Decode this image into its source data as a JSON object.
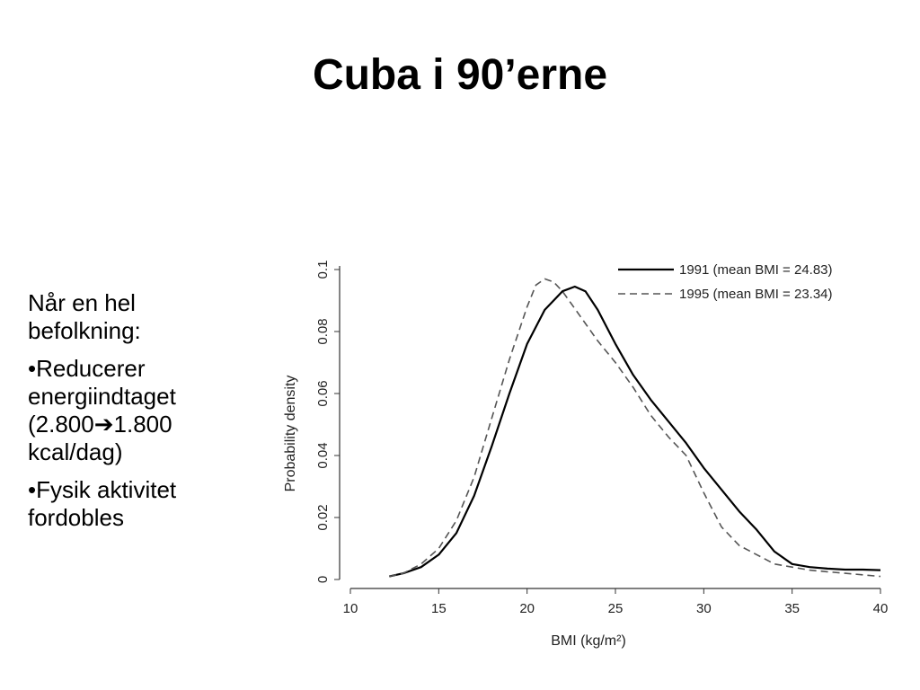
{
  "slide": {
    "title": "Cuba i 90’erne",
    "text": {
      "intro": "Når en hel befolkning:",
      "bullets": [
        {
          "prefix": "•Reducerer energiindtaget (2.800",
          "arrow": "➔",
          "suffix": "1.800 kcal/dag)"
        },
        {
          "prefix": "•Fysik aktivitet fordobles",
          "arrow": "",
          "suffix": ""
        }
      ]
    }
  },
  "chart_data": {
    "type": "line",
    "xlabel": "BMI (kg/m²)",
    "ylabel": "Probability density",
    "xlim": [
      10,
      40
    ],
    "ylim": [
      0,
      0.1
    ],
    "xticks": [
      10,
      15,
      20,
      25,
      30,
      35,
      40
    ],
    "yticks": [
      0,
      0.02,
      0.04,
      0.06,
      0.08,
      0.1
    ],
    "ytick_labels": [
      "0",
      "0.02",
      "0.04",
      "0.06",
      "0.08",
      "0.1"
    ],
    "grid": false,
    "legend_position": "top-right",
    "series": [
      {
        "name": "1991 (mean BMI = 24.83)",
        "style": "solid",
        "color": "#000000",
        "x": [
          12.2,
          13,
          14,
          15,
          16,
          17,
          18,
          19,
          20,
          21,
          22,
          22.7,
          23.3,
          24,
          25,
          26,
          27,
          28,
          29,
          30,
          31,
          32,
          33,
          34,
          35,
          36,
          37,
          38,
          39,
          40
        ],
        "y": [
          0.001,
          0.002,
          0.004,
          0.008,
          0.015,
          0.027,
          0.043,
          0.06,
          0.076,
          0.087,
          0.093,
          0.0945,
          0.093,
          0.087,
          0.076,
          0.066,
          0.058,
          0.051,
          0.044,
          0.036,
          0.029,
          0.022,
          0.016,
          0.009,
          0.005,
          0.004,
          0.0035,
          0.0032,
          0.0032,
          0.003
        ]
      },
      {
        "name": "1995 (mean BMI = 23.34)",
        "style": "dashed",
        "color": "#555555",
        "x": [
          12.2,
          13,
          14,
          15,
          16,
          17,
          18,
          19,
          20,
          20.5,
          21,
          21.5,
          22,
          23,
          24,
          25,
          26,
          27,
          28,
          29,
          30,
          31,
          32,
          33,
          34,
          35,
          36,
          37,
          38,
          39,
          40
        ],
        "y": [
          0.001,
          0.002,
          0.005,
          0.01,
          0.019,
          0.033,
          0.052,
          0.071,
          0.088,
          0.095,
          0.097,
          0.096,
          0.093,
          0.085,
          0.077,
          0.07,
          0.062,
          0.053,
          0.046,
          0.04,
          0.028,
          0.017,
          0.011,
          0.008,
          0.005,
          0.004,
          0.003,
          0.0025,
          0.002,
          0.0015,
          0.001
        ]
      }
    ]
  }
}
